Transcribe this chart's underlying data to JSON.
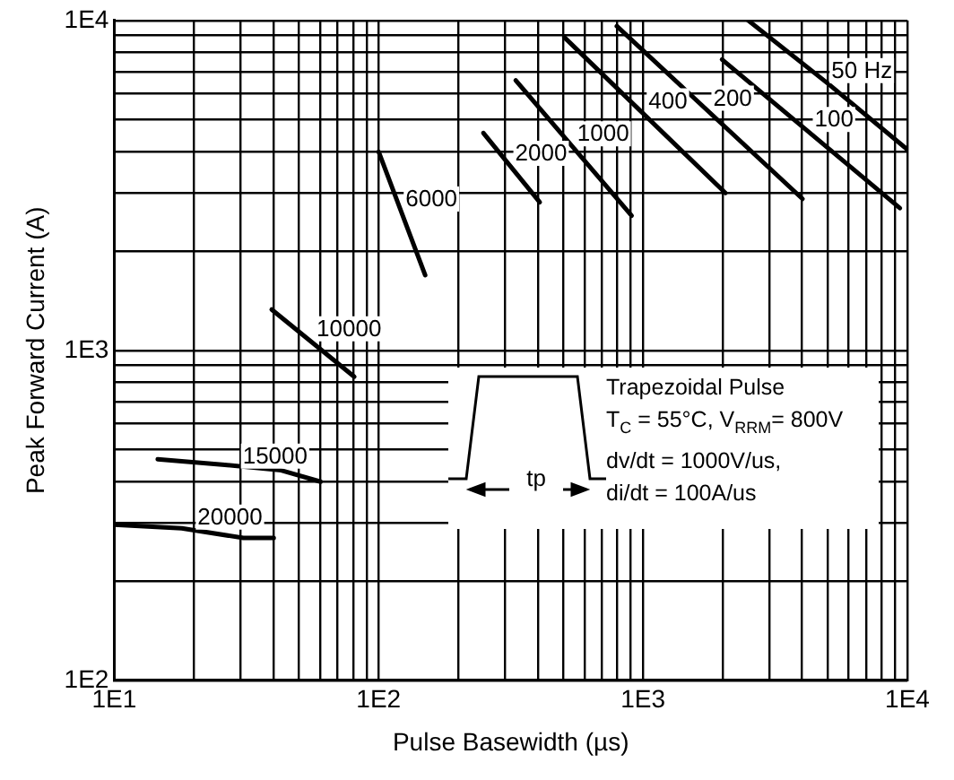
{
  "chart_data": {
    "type": "line",
    "xlabel": "Pulse Basewidth (µs)",
    "ylabel": "Peak Forward Current (A)",
    "log": "xy",
    "grid": true,
    "legend": false,
    "marker": "none",
    "line_style": "solid",
    "xlim": [
      10,
      10000
    ],
    "ylim": [
      100,
      10000
    ],
    "xticks": [
      {
        "value": 10,
        "label": "1E1"
      },
      {
        "value": 20,
        "label": null
      },
      {
        "value": 30,
        "label": null
      },
      {
        "value": 40,
        "label": null
      },
      {
        "value": 50,
        "label": null
      },
      {
        "value": 60,
        "label": null
      },
      {
        "value": 70,
        "label": null
      },
      {
        "value": 80,
        "label": null
      },
      {
        "value": 90,
        "label": null
      },
      {
        "value": 100,
        "label": "1E2"
      },
      {
        "value": 200,
        "label": null
      },
      {
        "value": 300,
        "label": null
      },
      {
        "value": 400,
        "label": null
      },
      {
        "value": 500,
        "label": null
      },
      {
        "value": 600,
        "label": null
      },
      {
        "value": 700,
        "label": null
      },
      {
        "value": 800,
        "label": null
      },
      {
        "value": 900,
        "label": null
      },
      {
        "value": 1000,
        "label": "1E3"
      },
      {
        "value": 2000,
        "label": null
      },
      {
        "value": 3000,
        "label": null
      },
      {
        "value": 4000,
        "label": null
      },
      {
        "value": 5000,
        "label": null
      },
      {
        "value": 6000,
        "label": null
      },
      {
        "value": 7000,
        "label": null
      },
      {
        "value": 8000,
        "label": null
      },
      {
        "value": 9000,
        "label": null
      },
      {
        "value": 10000,
        "label": "1E4"
      }
    ],
    "yticks": [
      {
        "value": 100,
        "label": "1E2"
      },
      {
        "value": 200,
        "label": null
      },
      {
        "value": 300,
        "label": null
      },
      {
        "value": 400,
        "label": null
      },
      {
        "value": 500,
        "label": null
      },
      {
        "value": 600,
        "label": null
      },
      {
        "value": 700,
        "label": null
      },
      {
        "value": 800,
        "label": null
      },
      {
        "value": 900,
        "label": null
      },
      {
        "value": 1000,
        "label": "1E3"
      },
      {
        "value": 2000,
        "label": null
      },
      {
        "value": 3000,
        "label": null
      },
      {
        "value": 4000,
        "label": null
      },
      {
        "value": 5000,
        "label": null
      },
      {
        "value": 6000,
        "label": null
      },
      {
        "value": 7000,
        "label": null
      },
      {
        "value": 8000,
        "label": null
      },
      {
        "value": 9000,
        "label": null
      },
      {
        "value": 10000,
        "label": "1E4"
      }
    ],
    "series": [
      {
        "name": "50 Hz",
        "color": "#000000",
        "x": [
          2500,
          5040,
          10000
        ],
        "values": [
          10000,
          6410,
          4060
        ]
      },
      {
        "name": "100",
        "color": "#000000",
        "x": [
          1990,
          9370
        ],
        "values": [
          7610,
          2700
        ]
      },
      {
        "name": "200",
        "color": "#000000",
        "x": [
          796,
          4010
        ],
        "values": [
          9610,
          2880
        ]
      },
      {
        "name": "400",
        "color": "#000000",
        "x": [
          504,
          2050
        ],
        "values": [
          8890,
          3000
        ]
      },
      {
        "name": "1000",
        "color": "#000000",
        "x": [
          330,
          906
        ],
        "values": [
          6580,
          2560
        ]
      },
      {
        "name": "2000",
        "color": "#000000",
        "x": [
          249,
          407
        ],
        "values": [
          4560,
          2810
        ]
      },
      {
        "name": "6000",
        "color": "#000000",
        "x": [
          100,
          150
        ],
        "values": [
          4000,
          1690
        ]
      },
      {
        "name": "10000",
        "color": "#000000",
        "x": [
          39.4,
          80.9
        ],
        "values": [
          1330,
          832
        ]
      },
      {
        "name": "15000",
        "color": "#000000",
        "x": [
          14.6,
          26.2,
          42.8,
          60.3
        ],
        "values": [
          468,
          450,
          433,
          400
        ]
      },
      {
        "name": "20000",
        "color": "#000000",
        "x": [
          10,
          18,
          30.8,
          40.1
        ],
        "values": [
          296,
          289,
          270,
          270
        ]
      }
    ],
    "annotations": [
      "tp",
      "Trapezoidal Pulse",
      "T$_{C}$ = 55°C, V$_{RRM}$= 800V",
      "dv/dt = 1000V/us,",
      "di/dt = 100A/us"
    ]
  }
}
